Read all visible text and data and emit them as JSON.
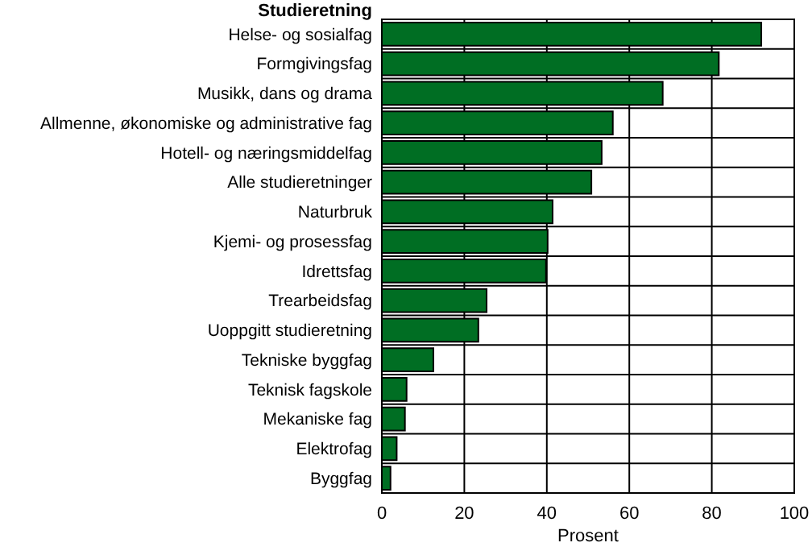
{
  "chart_data": {
    "type": "bar",
    "orientation": "horizontal",
    "ylabel": "Studieretning",
    "xlabel": "Prosent",
    "categories": [
      "Helse- og sosialfag",
      "Formgivingsfag",
      "Musikk, dans og drama",
      "Allmenne, økonomiske og administrative fag",
      "Hotell- og næringsmiddelfag",
      "Alle studieretninger",
      "Naturbruk",
      "Kjemi- og prosessfag",
      "Idrettsfag",
      "Trearbeidsfag",
      "Uoppgitt studieretning",
      "Tekniske byggfag",
      "Teknisk fagskole",
      "Mekaniske fag",
      "Elektrofag",
      "Byggfag"
    ],
    "values": [
      92,
      81.7,
      68.1,
      56,
      53.3,
      50.8,
      41.4,
      40.2,
      39.8,
      25.4,
      23.4,
      12.5,
      6,
      5.6,
      3.6,
      2.1
    ],
    "color": "#006e23",
    "xlim": [
      0,
      100
    ],
    "xticks": [
      0,
      20,
      40,
      60,
      80,
      100
    ],
    "grid": true
  }
}
